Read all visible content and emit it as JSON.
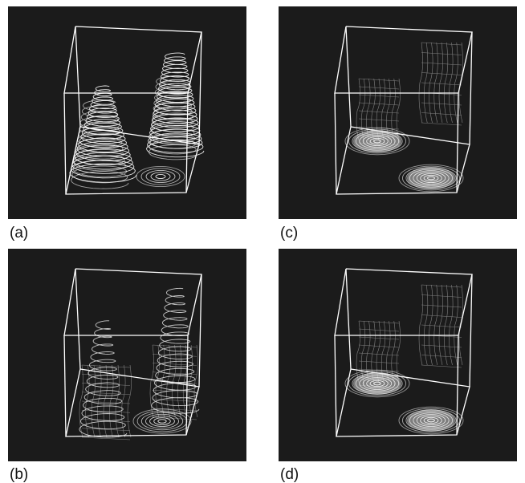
{
  "figure": {
    "background": "#ffffff",
    "panel_background": "#1b1b1b",
    "line_color": "#ffffff",
    "panels": [
      {
        "id": "a",
        "label": "(a)",
        "style": "helical-streamlines"
      },
      {
        "id": "b",
        "label": "(b)",
        "style": "sparse-streamlines"
      },
      {
        "id": "c",
        "label": "(c)",
        "style": "vortex-rings"
      },
      {
        "id": "d",
        "label": "(d)",
        "style": "vortex-rings"
      }
    ]
  }
}
